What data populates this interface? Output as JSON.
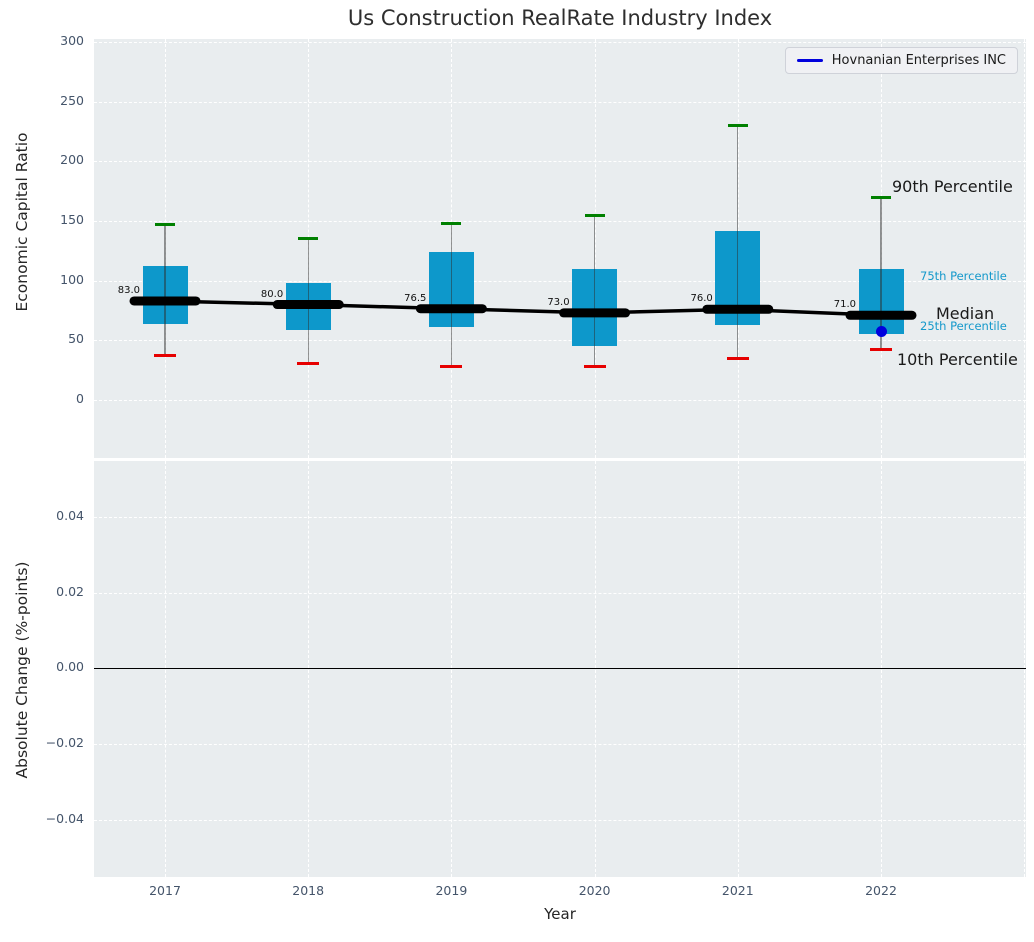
{
  "title": "Us Construction RealRate Industry Index",
  "legend": {
    "label": "Hovnanian Enterprises INC",
    "line_color": "#0000dd"
  },
  "annotations": {
    "p90": "90th Percentile",
    "p75": "75th Percentile",
    "median": "Median",
    "p25": "25th Percentile",
    "p10": "10th Percentile"
  },
  "colors": {
    "box_fill": "#0d98cb",
    "p90_cap": "#008000",
    "p10_cap": "#e60000",
    "median_line": "#000000",
    "company": "#0000dd",
    "axes_bg": "#e9edef",
    "grid": "#ffffff",
    "tick_label": "#44546a",
    "annotation_blue": "#1599cb"
  },
  "chart_data": [
    {
      "type": "box",
      "title": "Us Construction RealRate Industry Index",
      "xlabel": "Year",
      "ylabel": "Economic Capital Ratio",
      "categories": [
        2017,
        2018,
        2019,
        2020,
        2021,
        2022
      ],
      "yticks": [
        0,
        50,
        100,
        150,
        200,
        250,
        300
      ],
      "ylim": [
        -48,
        302
      ],
      "grid": true,
      "legend_position": "upper right",
      "legend_entries": [
        "Hovnanian Enterprises INC"
      ],
      "boxes": [
        {
          "year": "2017",
          "p10": 37,
          "p25": 64,
          "median": 83.0,
          "median_label": "83.0",
          "p75": 112,
          "p90": 147
        },
        {
          "year": "2018",
          "p10": 31,
          "p25": 59,
          "median": 80.0,
          "median_label": "80.0",
          "p75": 98,
          "p90": 135
        },
        {
          "year": "2019",
          "p10": 28,
          "p25": 61,
          "median": 76.5,
          "median_label": "76.5",
          "p75": 124,
          "p90": 148
        },
        {
          "year": "2020",
          "p10": 28,
          "p25": 45,
          "median": 73.0,
          "median_label": "73.0",
          "p75": 110,
          "p90": 155
        },
        {
          "year": "2021",
          "p10": 35,
          "p25": 63,
          "median": 76.0,
          "median_label": "76.0",
          "p75": 142,
          "p90": 230
        },
        {
          "year": "2022",
          "p10": 42,
          "p25": 55,
          "median": 71.0,
          "median_label": "71.0",
          "p75": 110,
          "p90": 170
        }
      ],
      "company_points": [
        {
          "year": "2022",
          "value": 57
        }
      ]
    },
    {
      "type": "line",
      "xlabel": "Year",
      "ylabel": "Absolute Change (%-points)",
      "categories": [
        2017,
        2018,
        2019,
        2020,
        2021,
        2022
      ],
      "yticks": [
        {
          "v": 0.04,
          "label": "0.04"
        },
        {
          "v": 0.02,
          "label": "0.02"
        },
        {
          "v": 0.0,
          "label": "0.00"
        },
        {
          "v": -0.02,
          "label": "−0.02"
        },
        {
          "v": -0.04,
          "label": "−0.04"
        }
      ],
      "ylim": [
        -0.055,
        0.055
      ],
      "grid": true,
      "zero_line": 0.0,
      "series": []
    }
  ]
}
